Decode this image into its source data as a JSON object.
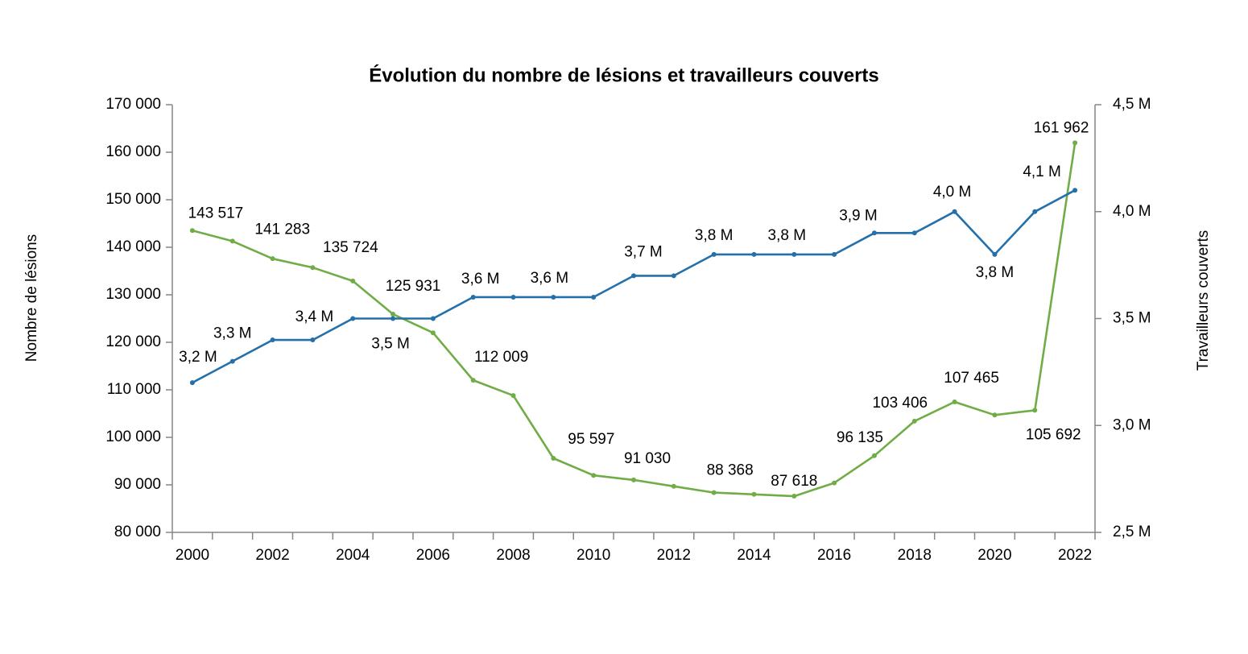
{
  "chart_data": {
    "type": "line",
    "title": "Évolution du nombre de lésions et travailleurs couverts",
    "ylabel": "Nombre de lésions",
    "y2label": "Travailleurs  couverts",
    "categories": [
      "2000",
      null,
      "2002",
      null,
      "2004",
      null,
      "2006",
      null,
      "2008",
      null,
      "2010",
      null,
      "2012",
      null,
      "2014",
      null,
      "2016",
      null,
      "2018",
      null,
      "2020",
      null,
      "2022"
    ],
    "ylim": [
      80000,
      170000
    ],
    "yticks": [
      {
        "value": 80000,
        "label": "80 000"
      },
      {
        "value": 90000,
        "label": "90 000"
      },
      {
        "value": 100000,
        "label": "100 000"
      },
      {
        "value": 110000,
        "label": "110 000"
      },
      {
        "value": 120000,
        "label": "120 000"
      },
      {
        "value": 130000,
        "label": "130 000"
      },
      {
        "value": 140000,
        "label": "140 000"
      },
      {
        "value": 150000,
        "label": "150 000"
      },
      {
        "value": 160000,
        "label": "160 000"
      },
      {
        "value": 170000,
        "label": "170 000"
      }
    ],
    "y2lim": [
      2.5,
      4.5
    ],
    "y2ticks": [
      {
        "value": 2.5,
        "label": "2,5 M"
      },
      {
        "value": 3.0,
        "label": "3,0 M"
      },
      {
        "value": 3.5,
        "label": "3,5 M"
      },
      {
        "value": 4.0,
        "label": "4,0 M"
      },
      {
        "value": 4.5,
        "label": "4,5 M"
      }
    ],
    "grid": false,
    "series": [
      {
        "color": "#70ad47",
        "values": [
          143517,
          141283,
          137600,
          135724,
          132900,
          125931,
          122000,
          112009,
          108800,
          95597,
          92000,
          91030,
          89700,
          88368,
          88000,
          87618,
          90400,
          96135,
          103406,
          107465,
          104700,
          105692,
          161962
        ],
        "value_labels": [
          "143 517",
          "141 283",
          null,
          "135 724",
          null,
          "125 931",
          null,
          "112 009",
          null,
          "95 597",
          null,
          "91 030",
          null,
          "88 368",
          null,
          "87 618",
          null,
          "96 135",
          "103 406",
          "107 465",
          null,
          "105 692",
          "161 962"
        ]
      },
      {
        "color": "#2470aa",
        "axis": "y2",
        "values": [
          3.2,
          3.3,
          3.4,
          3.4,
          3.5,
          3.5,
          3.5,
          3.6,
          3.6,
          3.6,
          3.6,
          3.7,
          3.7,
          3.8,
          3.8,
          3.8,
          3.8,
          3.9,
          3.9,
          4.0,
          3.8,
          4.0,
          4.1
        ],
        "value_labels": [
          "3,2 M",
          "3,3 M",
          null,
          "3,4 M",
          null,
          "3,5 M",
          null,
          "3,6 M",
          null,
          "3,6 M",
          null,
          "3,7 M",
          null,
          "3,8 M",
          null,
          "3,8 M",
          null,
          "3,9 M",
          null,
          "4,0 M",
          "3,8 M",
          null,
          "4,1 M"
        ]
      }
    ]
  }
}
